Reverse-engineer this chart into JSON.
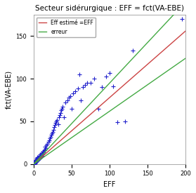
{
  "title": "Secteur sidérurgique : EFF = fct(VA-EBE)",
  "xlabel": "EFF",
  "ylabel": "fct(VA-EBE)",
  "xlim": [
    0,
    200
  ],
  "ylim": [
    0,
    175
  ],
  "xticks": [
    0,
    50,
    100,
    150,
    200
  ],
  "yticks": [
    0,
    50,
    100,
    150
  ],
  "bg_color": "#ffffff",
  "plot_bg_color": "#ffffff",
  "scatter_color": "#2222cc",
  "line1_color": "#cc4444",
  "line2_color": "#44aa44",
  "line1_label": "Eff estimé =EFF",
  "line2_label": "erreur",
  "line1_slope": 0.78,
  "line1_intercept": 0.0,
  "line2_upper_slope": 0.95,
  "line2_upper_intercept": 0.0,
  "line2_lower_slope": 0.62,
  "line2_lower_intercept": 0.0,
  "scatter_x": [
    1,
    1,
    1,
    1,
    2,
    2,
    2,
    2,
    2,
    2,
    3,
    3,
    3,
    3,
    3,
    4,
    4,
    4,
    4,
    5,
    5,
    5,
    5,
    5,
    6,
    6,
    6,
    7,
    7,
    7,
    8,
    8,
    8,
    9,
    9,
    10,
    10,
    10,
    11,
    11,
    12,
    12,
    13,
    14,
    15,
    15,
    16,
    17,
    18,
    19,
    20,
    21,
    22,
    23,
    24,
    25,
    26,
    27,
    28,
    29,
    30,
    31,
    32,
    33,
    34,
    35,
    36,
    37,
    38,
    40,
    42,
    44,
    46,
    48,
    50,
    52,
    55,
    58,
    60,
    62,
    65,
    68,
    70,
    75,
    80,
    85,
    90,
    95,
    100,
    105,
    110,
    120,
    130,
    195
  ],
  "scatter_y": [
    0,
    1,
    1,
    2,
    1,
    2,
    2,
    3,
    3,
    4,
    2,
    3,
    4,
    5,
    5,
    3,
    4,
    5,
    6,
    4,
    5,
    6,
    7,
    8,
    5,
    6,
    8,
    6,
    8,
    10,
    7,
    9,
    11,
    8,
    10,
    9,
    11,
    13,
    10,
    13,
    12,
    15,
    14,
    16,
    17,
    20,
    19,
    22,
    24,
    26,
    28,
    30,
    32,
    34,
    36,
    38,
    40,
    43,
    46,
    48,
    50,
    52,
    47,
    55,
    57,
    60,
    63,
    65,
    67,
    55,
    72,
    75,
    78,
    80,
    65,
    83,
    85,
    89,
    105,
    75,
    90,
    93,
    95,
    95,
    100,
    65,
    90,
    103,
    107,
    91,
    49,
    50,
    133,
    170
  ]
}
